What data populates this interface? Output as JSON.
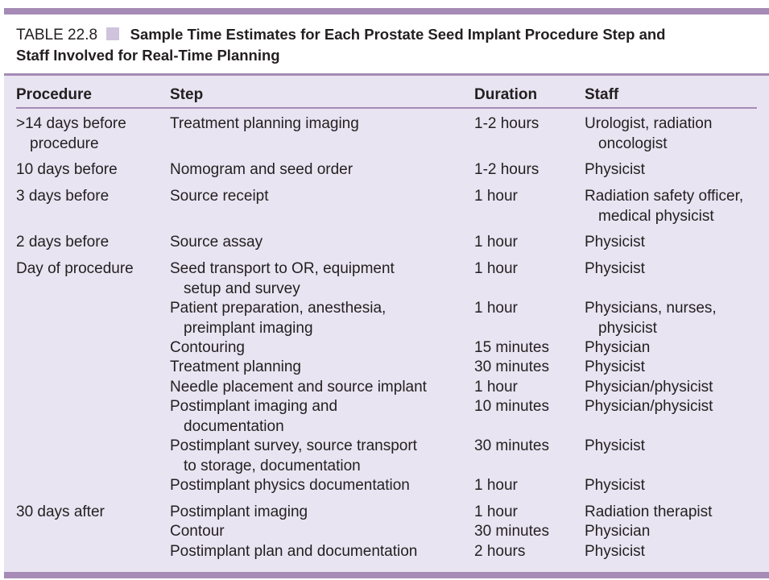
{
  "caption": {
    "label": "TABLE 22.8",
    "title_line1": "Sample Time Estimates for Each Prostate Seed Implant Procedure Step and",
    "title_line2": "Staff Involved for Real-Time Planning"
  },
  "colors": {
    "accent": "#a58bb6",
    "table_bg": "#e9e4f1",
    "square": "#cfc3dd",
    "text": "#231f20"
  },
  "headers": {
    "procedure": "Procedure",
    "step": "Step",
    "duration": "Duration",
    "staff": "Staff"
  },
  "rows": [
    {
      "procedure": [
        ">14 days before",
        "procedure"
      ],
      "step": [
        "Treatment planning imaging"
      ],
      "duration": "1-2 hours",
      "staff": [
        "Urologist, radiation",
        "oncologist"
      ]
    },
    {
      "procedure": [
        "10 days before"
      ],
      "step": [
        "Nomogram and seed order"
      ],
      "duration": "1-2 hours",
      "staff": [
        "Physicist"
      ]
    },
    {
      "procedure": [
        "3 days before"
      ],
      "step": [
        "Source receipt"
      ],
      "duration": "1 hour",
      "staff": [
        "Radiation safety officer,",
        "medical physicist"
      ]
    },
    {
      "procedure": [
        "2 days before"
      ],
      "step": [
        "Source assay"
      ],
      "duration": "1 hour",
      "staff": [
        "Physicist"
      ]
    },
    {
      "procedure": [
        "Day of procedure"
      ],
      "step": [
        "Seed transport to OR, equipment",
        "setup and survey"
      ],
      "duration": "1 hour",
      "staff": [
        "Physicist"
      ]
    },
    {
      "procedure": [],
      "step": [
        "Patient preparation, anesthesia,",
        "preimplant imaging"
      ],
      "duration": "1 hour",
      "staff": [
        "Physicians, nurses,",
        "physicist"
      ]
    },
    {
      "procedure": [],
      "step": [
        "Contouring"
      ],
      "duration": "15 minutes",
      "staff": [
        "Physician"
      ]
    },
    {
      "procedure": [],
      "step": [
        "Treatment planning"
      ],
      "duration": "30 minutes",
      "staff": [
        "Physicist"
      ]
    },
    {
      "procedure": [],
      "step": [
        "Needle placement and source implant"
      ],
      "duration": "1 hour",
      "staff": [
        "Physician/physicist"
      ]
    },
    {
      "procedure": [],
      "step": [
        "Postimplant imaging and",
        "documentation"
      ],
      "duration": "10 minutes",
      "staff": [
        "Physician/physicist"
      ]
    },
    {
      "procedure": [],
      "step": [
        "Postimplant survey, source transport",
        "to storage, documentation"
      ],
      "duration": "30 minutes",
      "staff": [
        "Physicist"
      ]
    },
    {
      "procedure": [],
      "step": [
        "Postimplant physics documentation"
      ],
      "duration": "1 hour",
      "staff": [
        "Physicist"
      ]
    },
    {
      "procedure": [
        "30 days after"
      ],
      "step": [
        "Postimplant imaging"
      ],
      "duration": "1 hour",
      "staff": [
        "Radiation therapist"
      ]
    },
    {
      "procedure": [],
      "step": [
        "Contour"
      ],
      "duration": "30 minutes",
      "staff": [
        "Physician"
      ]
    },
    {
      "procedure": [],
      "step": [
        "Postimplant plan and documentation"
      ],
      "duration": "2 hours",
      "staff": [
        "Physicist"
      ]
    }
  ]
}
